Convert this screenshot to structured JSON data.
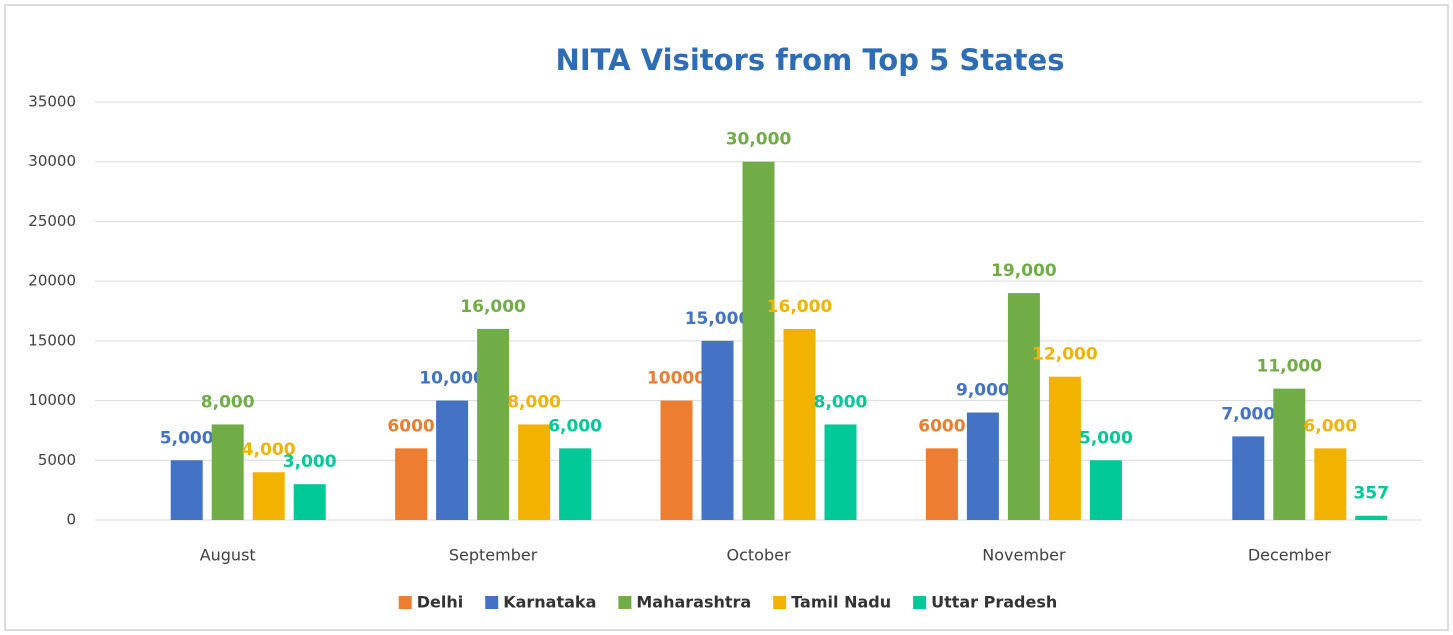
{
  "chart_data": {
    "type": "bar",
    "title": "NITA Visitors from Top 5 States",
    "categories": [
      "August",
      "September",
      "October",
      "November",
      "December"
    ],
    "series": [
      {
        "name": "Delhi",
        "color": "#ed7d31",
        "values": [
          null,
          6000,
          10000,
          6000,
          null
        ]
      },
      {
        "name": "Karnataka",
        "color": "#4472c4",
        "values": [
          5000,
          10000,
          15000,
          9000,
          7000
        ],
        "value_labels": [
          "5,000",
          "10,000",
          "15,000",
          "9,000",
          "7,000"
        ]
      },
      {
        "name": "Maharashtra",
        "color": "#70ad47",
        "values": [
          8000,
          16000,
          30000,
          19000,
          11000
        ],
        "value_labels": [
          "8,000",
          "16,000",
          "30,000",
          "19,000",
          "11,000"
        ]
      },
      {
        "name": "Tamil Nadu",
        "color": "#f2b300",
        "values": [
          4000,
          8000,
          16000,
          12000,
          6000
        ],
        "value_labels": [
          "4,000",
          "8,000",
          "16,000",
          "12,000",
          "6,000"
        ]
      },
      {
        "name": "Uttar Pradesh",
        "color": "#00c896",
        "values": [
          3000,
          6000,
          8000,
          5000,
          357
        ],
        "value_labels": [
          "3,000",
          "6,000",
          "8,000",
          "5,000",
          "357"
        ]
      }
    ],
    "ylim": [
      0,
      35000
    ],
    "yticks": [
      0,
      5000,
      10000,
      15000,
      20000,
      25000,
      30000,
      35000
    ],
    "grid": true,
    "legend": "bottom"
  }
}
